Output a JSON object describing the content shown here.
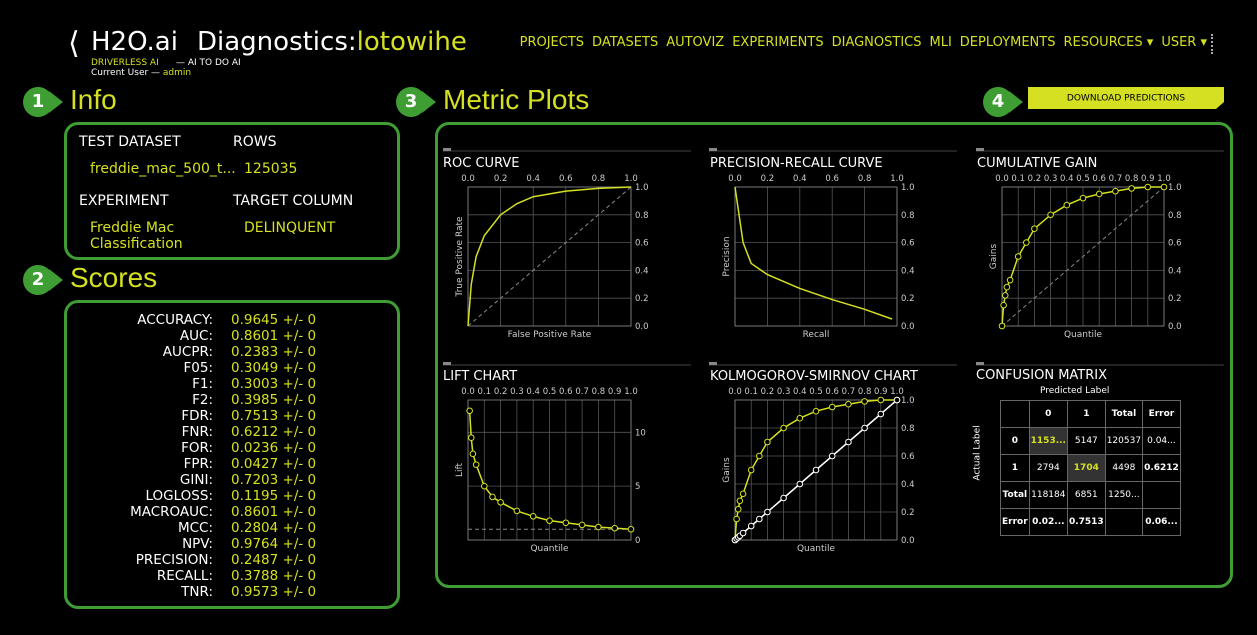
{
  "header": {
    "logo": "H2O.ai",
    "title": "Diagnostics:",
    "experiment": "lotowihe",
    "product": "DRIVERLESS AI",
    "tagline": "— AI TO DO AI",
    "user_label": "Current User —",
    "user": "admin"
  },
  "nav": [
    "PROJECTS",
    "DATASETS",
    "AUTOVIZ",
    "EXPERIMENTS",
    "DIAGNOSTICS",
    "MLI",
    "DEPLOYMENTS",
    "RESOURCES",
    "USER"
  ],
  "steps": [
    "1",
    "2",
    "3",
    "4"
  ],
  "info": {
    "title": "Info",
    "fields": [
      {
        "label": "TEST DATASET",
        "value": "freddie_mac_500_t..."
      },
      {
        "label": "ROWS",
        "value": "125035"
      },
      {
        "label": "EXPERIMENT",
        "value": "Freddie Mac Classification"
      },
      {
        "label": "TARGET COLUMN",
        "value": "DELINQUENT"
      }
    ]
  },
  "scores": {
    "title": "Scores",
    "rows": [
      {
        "name": "ACCURACY:",
        "value": "0.9645 +/- 0"
      },
      {
        "name": "AUC:",
        "value": "0.8601 +/- 0"
      },
      {
        "name": "AUCPR:",
        "value": "0.2383 +/- 0"
      },
      {
        "name": "F05:",
        "value": "0.3049 +/- 0"
      },
      {
        "name": "F1:",
        "value": "0.3003 +/- 0"
      },
      {
        "name": "F2:",
        "value": "0.3985 +/- 0"
      },
      {
        "name": "FDR:",
        "value": "0.7513 +/- 0"
      },
      {
        "name": "FNR:",
        "value": "0.6212 +/- 0"
      },
      {
        "name": "FOR:",
        "value": "0.0236 +/- 0"
      },
      {
        "name": "FPR:",
        "value": "0.0427 +/- 0"
      },
      {
        "name": "GINI:",
        "value": "0.7203 +/- 0"
      },
      {
        "name": "LOGLOSS:",
        "value": "0.1195 +/- 0"
      },
      {
        "name": "MACROAUC:",
        "value": "0.8601 +/- 0"
      },
      {
        "name": "MCC:",
        "value": "0.2804 +/- 0"
      },
      {
        "name": "NPV:",
        "value": "0.9764 +/- 0"
      },
      {
        "name": "PRECISION:",
        "value": "0.2487 +/- 0"
      },
      {
        "name": "RECALL:",
        "value": "0.3788 +/- 0"
      },
      {
        "name": "TNR:",
        "value": "0.9573 +/- 0"
      }
    ]
  },
  "metric_plots": {
    "title": "Metric Plots",
    "download": "DOWNLOAD PREDICTIONS",
    "plots": [
      {
        "title": "ROC CURVE",
        "xlabel": "False Positive Rate",
        "ylabel": "True Positive Rate",
        "xlim": [
          0,
          1
        ],
        "ylim": [
          0,
          1
        ],
        "diagonal": true,
        "xticks": [
          {
            "value": 0,
            "label": "0.0"
          },
          {
            "value": 0.2,
            "label": "0.2"
          },
          {
            "value": 0.4,
            "label": "0.4"
          },
          {
            "value": 0.6,
            "label": "0.6"
          },
          {
            "value": 0.8,
            "label": "0.8"
          },
          {
            "value": 1,
            "label": "1.0"
          }
        ],
        "yticks": [
          {
            "value": 0,
            "label": "0.0"
          },
          {
            "value": 0.2,
            "label": "0.2"
          },
          {
            "value": 0.4,
            "label": "0.4"
          },
          {
            "value": 0.6,
            "label": "0.6"
          },
          {
            "value": 0.8,
            "label": "0.8"
          },
          {
            "value": 1,
            "label": "1.0"
          }
        ],
        "series": [
          {
            "color": "#d4e021",
            "markers": false,
            "x": [
              0,
              0.02,
              0.05,
              0.1,
              0.2,
              0.3,
              0.4,
              0.6,
              0.8,
              1
            ],
            "y": [
              0,
              0.3,
              0.5,
              0.65,
              0.8,
              0.88,
              0.93,
              0.97,
              0.99,
              1
            ]
          }
        ]
      },
      {
        "title": "PRECISION-RECALL CURVE",
        "xlabel": "Recall",
        "ylabel": "Precision",
        "xlim": [
          0,
          1
        ],
        "ylim": [
          0,
          1
        ],
        "diagonal": false,
        "xticks": [
          {
            "value": 0,
            "label": "0.0"
          },
          {
            "value": 0.2,
            "label": "0.2"
          },
          {
            "value": 0.4,
            "label": "0.4"
          },
          {
            "value": 0.6,
            "label": "0.6"
          },
          {
            "value": 0.8,
            "label": "0.8"
          },
          {
            "value": 1,
            "label": "1.0"
          }
        ],
        "yticks": [
          {
            "value": 0,
            "label": "0.0"
          },
          {
            "value": 0.2,
            "label": "0.2"
          },
          {
            "value": 0.4,
            "label": "0.4"
          },
          {
            "value": 0.6,
            "label": "0.6"
          },
          {
            "value": 0.8,
            "label": "0.8"
          },
          {
            "value": 1,
            "label": "1.0"
          }
        ],
        "series": [
          {
            "color": "#d4e021",
            "markers": false,
            "x": [
              0,
              0.05,
              0.1,
              0.2,
              0.4,
              0.6,
              0.8,
              0.97
            ],
            "y": [
              1,
              0.6,
              0.45,
              0.37,
              0.27,
              0.19,
              0.12,
              0.05
            ]
          }
        ]
      },
      {
        "title": "CUMULATIVE GAIN",
        "xlabel": "Quantile",
        "ylabel": "Gains",
        "xlim": [
          0,
          1
        ],
        "ylim": [
          0,
          1
        ],
        "diagonal": true,
        "xticks": [
          {
            "value": 0,
            "label": "0.0"
          },
          {
            "value": 0.1,
            "label": "0.1"
          },
          {
            "value": 0.2,
            "label": "0.2"
          },
          {
            "value": 0.3,
            "label": "0.3"
          },
          {
            "value": 0.4,
            "label": "0.4"
          },
          {
            "value": 0.5,
            "label": "0.5"
          },
          {
            "value": 0.6,
            "label": "0.6"
          },
          {
            "value": 0.7,
            "label": "0.7"
          },
          {
            "value": 0.8,
            "label": "0.8"
          },
          {
            "value": 0.9,
            "label": "0.9"
          },
          {
            "value": 1,
            "label": "1.0"
          }
        ],
        "yticks": [
          {
            "value": 0,
            "label": "0.0"
          },
          {
            "value": 0.2,
            "label": "0.2"
          },
          {
            "value": 0.4,
            "label": "0.4"
          },
          {
            "value": 0.6,
            "label": "0.6"
          },
          {
            "value": 0.8,
            "label": "0.8"
          },
          {
            "value": 1,
            "label": "1.0"
          }
        ],
        "series": [
          {
            "color": "#d4e021",
            "markers": true,
            "x": [
              0,
              0.01,
              0.02,
              0.03,
              0.05,
              0.1,
              0.15,
              0.2,
              0.3,
              0.4,
              0.5,
              0.6,
              0.7,
              0.8,
              0.9,
              1
            ],
            "y": [
              0,
              0.15,
              0.22,
              0.28,
              0.33,
              0.5,
              0.6,
              0.7,
              0.8,
              0.87,
              0.92,
              0.95,
              0.97,
              0.99,
              1,
              1
            ]
          }
        ]
      },
      {
        "title": "LIFT CHART",
        "xlabel": "Quantile",
        "ylabel": "Lift",
        "xlim": [
          0,
          1
        ],
        "ylim": [
          0,
          13
        ],
        "diagonal": false,
        "baseline": 1,
        "xticks": [
          {
            "value": 0,
            "label": "0.0"
          },
          {
            "value": 0.1,
            "label": "0.1"
          },
          {
            "value": 0.2,
            "label": "0.2"
          },
          {
            "value": 0.3,
            "label": "0.3"
          },
          {
            "value": 0.4,
            "label": "0.4"
          },
          {
            "value": 0.5,
            "label": "0.5"
          },
          {
            "value": 0.6,
            "label": "0.6"
          },
          {
            "value": 0.7,
            "label": "0.7"
          },
          {
            "value": 0.8,
            "label": "0.8"
          },
          {
            "value": 0.9,
            "label": "0.9"
          },
          {
            "value": 1,
            "label": "1.0"
          }
        ],
        "yticks": [
          0,
          5,
          10
        ],
        "series": [
          {
            "color": "#d4e021",
            "markers": true,
            "x": [
              0.01,
              0.02,
              0.03,
              0.05,
              0.1,
              0.15,
              0.2,
              0.3,
              0.4,
              0.5,
              0.6,
              0.7,
              0.8,
              0.9,
              1
            ],
            "y": [
              12,
              9.5,
              8,
              7,
              5,
              4,
              3.5,
              2.7,
              2.2,
              1.8,
              1.6,
              1.4,
              1.2,
              1.1,
              1
            ]
          }
        ]
      },
      {
        "title": "KOLMOGOROV-SMIRNOV CHART",
        "xlabel": "Quantile",
        "ylabel": "Gains",
        "xlim": [
          0,
          1
        ],
        "ylim": [
          0,
          1
        ],
        "diagonal": false,
        "xticks": [
          {
            "value": 0,
            "label": "0.0"
          },
          {
            "value": 0.1,
            "label": "0.1"
          },
          {
            "value": 0.2,
            "label": "0.2"
          },
          {
            "value": 0.3,
            "label": "0.3"
          },
          {
            "value": 0.4,
            "label": "0.4"
          },
          {
            "value": 0.5,
            "label": "0.5"
          },
          {
            "value": 0.6,
            "label": "0.6"
          },
          {
            "value": 0.7,
            "label": "0.7"
          },
          {
            "value": 0.8,
            "label": "0.8"
          },
          {
            "value": 0.9,
            "label": "0.9"
          },
          {
            "value": 1,
            "label": "1.0"
          }
        ],
        "yticks": [
          {
            "value": 0,
            "label": "0.0"
          },
          {
            "value": 0.2,
            "label": "0.2"
          },
          {
            "value": 0.4,
            "label": "0.4"
          },
          {
            "value": 0.6,
            "label": "0.6"
          },
          {
            "value": 0.8,
            "label": "0.8"
          },
          {
            "value": 1,
            "label": "1.0"
          }
        ],
        "series": [
          {
            "color": "#d4e021",
            "markers": true,
            "x": [
              0,
              0.01,
              0.02,
              0.03,
              0.05,
              0.1,
              0.15,
              0.2,
              0.3,
              0.4,
              0.5,
              0.6,
              0.7,
              0.8,
              0.9,
              1
            ],
            "y": [
              0,
              0.15,
              0.22,
              0.28,
              0.33,
              0.5,
              0.6,
              0.7,
              0.8,
              0.87,
              0.92,
              0.95,
              0.97,
              0.99,
              1,
              1
            ]
          },
          {
            "color": "#ffffff",
            "markers": true,
            "x": [
              0,
              0.01,
              0.02,
              0.03,
              0.05,
              0.1,
              0.15,
              0.2,
              0.3,
              0.4,
              0.5,
              0.6,
              0.7,
              0.8,
              0.9,
              1
            ],
            "y": [
              0,
              0.01,
              0.02,
              0.03,
              0.05,
              0.1,
              0.15,
              0.2,
              0.3,
              0.4,
              0.5,
              0.6,
              0.7,
              0.8,
              0.9,
              1
            ]
          }
        ]
      }
    ],
    "confusion_matrix": {
      "title": "CONFUSION MATRIX",
      "x_label": "Predicted Label",
      "y_label": "Actual Label",
      "highlight_diagonal": true,
      "columns": [
        "0",
        "1",
        "Total",
        "Error"
      ],
      "rows": [
        {
          "label": "0",
          "cells": [
            "1153...",
            "5147",
            "120537",
            "0.04..."
          ]
        },
        {
          "label": "1",
          "cells": [
            "2794",
            "1704",
            "4498",
            "0.6212"
          ]
        },
        {
          "label": "Total",
          "cells": [
            "118184",
            "6851",
            "1250...",
            null
          ]
        },
        {
          "label": "Error",
          "cells": [
            "0.02...",
            "0.7513",
            null,
            "0.06..."
          ]
        }
      ]
    }
  }
}
